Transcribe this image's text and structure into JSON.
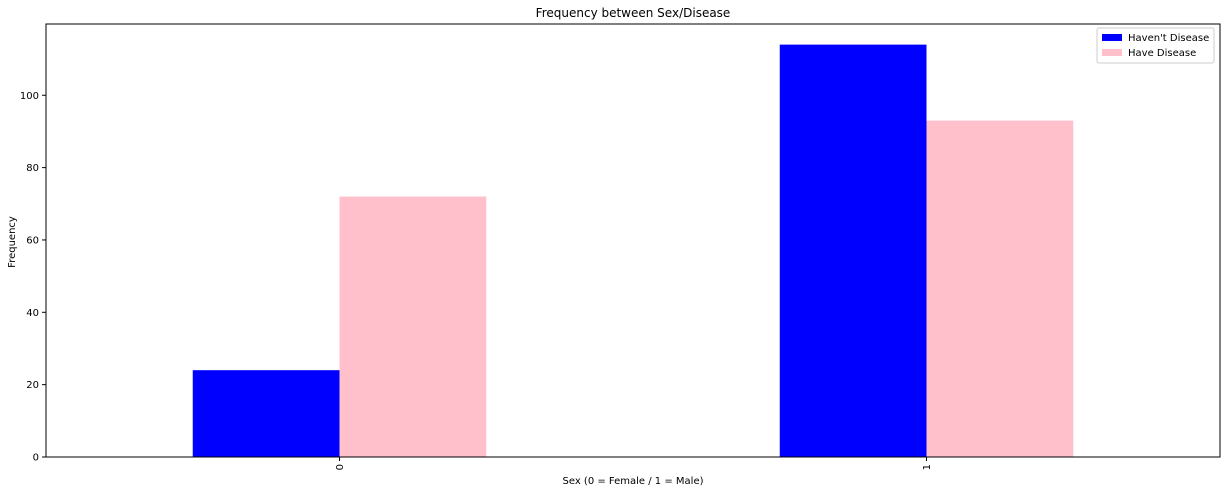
{
  "chart_data": {
    "type": "bar",
    "title": "Frequency between Sex/Disease",
    "xlabel": "Sex (0 = Female / 1 = Male)",
    "ylabel": "Frequency",
    "categories": [
      "0",
      "1"
    ],
    "series": [
      {
        "name": "Haven't Disease",
        "color": "#0000ff",
        "values": [
          24,
          114
        ]
      },
      {
        "name": "Have Disease",
        "color": "#ffc0cb",
        "values": [
          72,
          93
        ]
      }
    ],
    "ylim": [
      0,
      119.7
    ],
    "yticks": [
      0,
      20,
      40,
      60,
      80,
      100
    ],
    "grid": false,
    "legend_position": "top-right",
    "xtick_rotation": 90
  }
}
